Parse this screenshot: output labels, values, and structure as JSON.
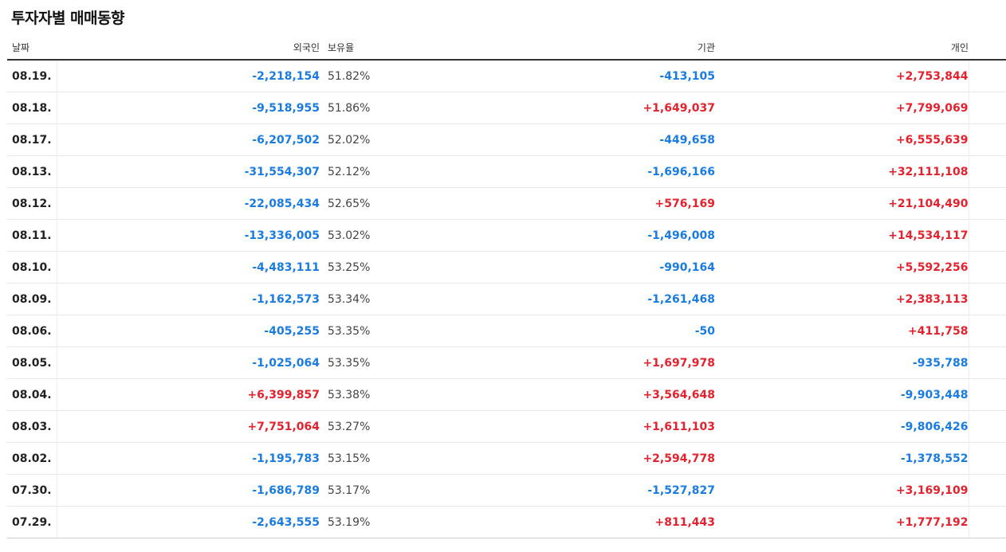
{
  "title": "투자자별 매매동향",
  "headers": {
    "date": "날짜",
    "foreign": "외국인",
    "ratio": "보유율",
    "institution": "기관",
    "individual": "개인"
  },
  "colors": {
    "positive": "#e4222e",
    "negative": "#1a7ce0"
  },
  "rows": [
    {
      "date": "08.19.",
      "foreign": "-2,218,154",
      "ratio": "51.82%",
      "institution": "-413,105",
      "individual": "+2,753,844"
    },
    {
      "date": "08.18.",
      "foreign": "-9,518,955",
      "ratio": "51.86%",
      "institution": "+1,649,037",
      "individual": "+7,799,069"
    },
    {
      "date": "08.17.",
      "foreign": "-6,207,502",
      "ratio": "52.02%",
      "institution": "-449,658",
      "individual": "+6,555,639"
    },
    {
      "date": "08.13.",
      "foreign": "-31,554,307",
      "ratio": "52.12%",
      "institution": "-1,696,166",
      "individual": "+32,111,108"
    },
    {
      "date": "08.12.",
      "foreign": "-22,085,434",
      "ratio": "52.65%",
      "institution": "+576,169",
      "individual": "+21,104,490"
    },
    {
      "date": "08.11.",
      "foreign": "-13,336,005",
      "ratio": "53.02%",
      "institution": "-1,496,008",
      "individual": "+14,534,117"
    },
    {
      "date": "08.10.",
      "foreign": "-4,483,111",
      "ratio": "53.25%",
      "institution": "-990,164",
      "individual": "+5,592,256"
    },
    {
      "date": "08.09.",
      "foreign": "-1,162,573",
      "ratio": "53.34%",
      "institution": "-1,261,468",
      "individual": "+2,383,113"
    },
    {
      "date": "08.06.",
      "foreign": "-405,255",
      "ratio": "53.35%",
      "institution": "-50",
      "individual": "+411,758"
    },
    {
      "date": "08.05.",
      "foreign": "-1,025,064",
      "ratio": "53.35%",
      "institution": "+1,697,978",
      "individual": "-935,788"
    },
    {
      "date": "08.04.",
      "foreign": "+6,399,857",
      "ratio": "53.38%",
      "institution": "+3,564,648",
      "individual": "-9,903,448"
    },
    {
      "date": "08.03.",
      "foreign": "+7,751,064",
      "ratio": "53.27%",
      "institution": "+1,611,103",
      "individual": "-9,806,426"
    },
    {
      "date": "08.02.",
      "foreign": "-1,195,783",
      "ratio": "53.15%",
      "institution": "+2,594,778",
      "individual": "-1,378,552"
    },
    {
      "date": "07.30.",
      "foreign": "-1,686,789",
      "ratio": "53.17%",
      "institution": "-1,527,827",
      "individual": "+3,169,109"
    },
    {
      "date": "07.29.",
      "foreign": "-2,643,555",
      "ratio": "53.19%",
      "institution": "+811,443",
      "individual": "+1,777,192"
    }
  ]
}
